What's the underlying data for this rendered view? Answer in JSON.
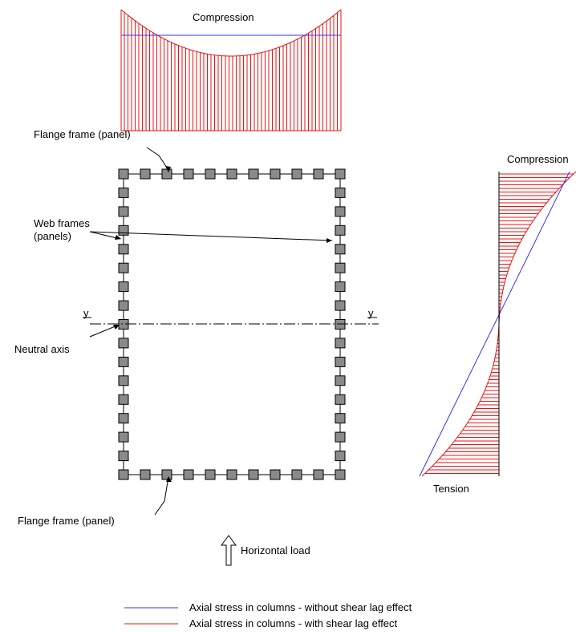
{
  "labels": {
    "compression_top": "Compression",
    "compression_right": "Compression",
    "tension": "Tension",
    "flange_top": "Flange frame (panel)",
    "flange_bottom": "Flange frame (panel)",
    "web_frames_line1": "Web frames",
    "web_frames_line2": "(panels)",
    "neutral_axis": "Neutral axis",
    "axis_y_left": "y",
    "axis_y_right": "y",
    "horizontal_load": "Horizontal load"
  },
  "legend": [
    {
      "text": "Axial stress in columns  - without shear lag effect",
      "color": "#3333ee"
    },
    {
      "text": "Axial stress in columns  - with shear lag effect",
      "color": "#ee1111"
    }
  ],
  "colors": {
    "without_shear_lag": "#3333ee",
    "with_shear_lag": "#ee1111",
    "column_fill": "#8a8a8a",
    "frame": "#000000"
  }
}
